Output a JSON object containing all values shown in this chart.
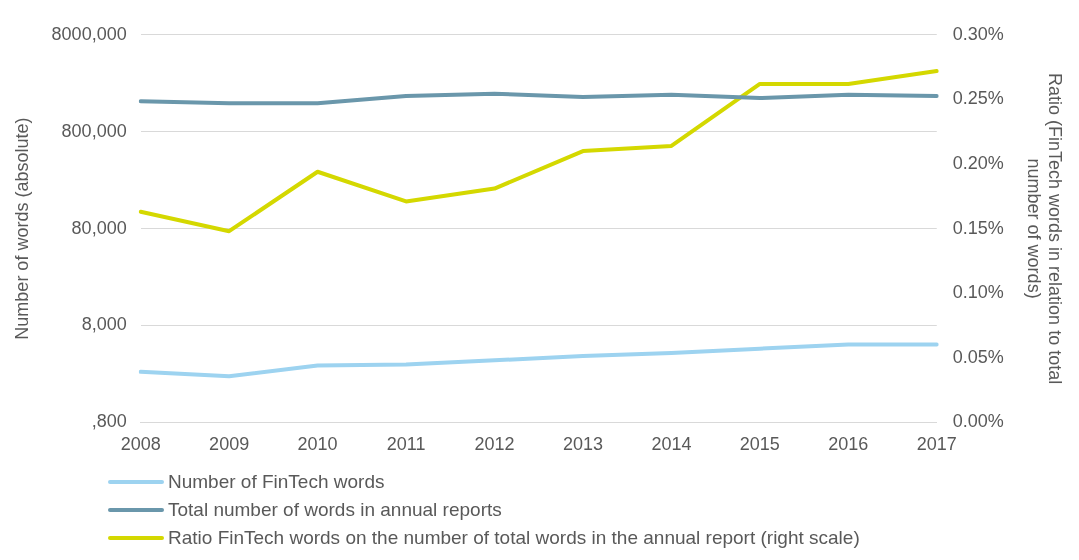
{
  "chart_data": {
    "type": "line",
    "categories": [
      "2008",
      "2009",
      "2010",
      "2011",
      "2012",
      "2013",
      "2014",
      "2015",
      "2016",
      "2017"
    ],
    "series": [
      {
        "name": "Number of FinTech words",
        "color": "#9dd3f0",
        "values": [
          2660,
          2400,
          3090,
          3170,
          3500,
          3870,
          4170,
          4610,
          5100,
          5100
        ]
      },
      {
        "name": "Total number of words in annual reports",
        "color": "#6a97ab",
        "values": [
          1650000,
          1570000,
          1570000,
          1870000,
          1970000,
          1830000,
          1920000,
          1780000,
          1920000,
          1870000
        ]
      },
      {
        "name": "Ratio FinTech words on the number of total words in the annual report (right scale)",
        "color": "#d4d800",
        "axis": "y2",
        "values": [
          0.163,
          0.148,
          0.194,
          0.171,
          0.181,
          0.21,
          0.214,
          0.262,
          0.262,
          0.272
        ]
      }
    ],
    "ylabel": "Number of words (absolute)",
    "y2label": "Ratio (FinTech words in relation to total number of words)",
    "log": "y",
    "ylim": [
      800,
      8000000
    ],
    "yticks": [
      {
        "value": 800,
        "label": ",800"
      },
      {
        "value": 8000,
        "label": "8,000"
      },
      {
        "value": 80000,
        "label": "80,000"
      },
      {
        "value": 800000,
        "label": "800,000"
      },
      {
        "value": 8000000,
        "label": "8000,000"
      }
    ],
    "y2lim": [
      0,
      0.3
    ],
    "y2ticks": [
      {
        "value": 0,
        "label": "0.00%"
      },
      {
        "value": 0.05,
        "label": "0.05%"
      },
      {
        "value": 0.1,
        "label": "0.10%"
      },
      {
        "value": 0.15,
        "label": "0.15%"
      },
      {
        "value": 0.2,
        "label": "0.20%"
      },
      {
        "value": 0.25,
        "label": "0.25%"
      },
      {
        "value": 0.3,
        "label": "0.30%"
      }
    ],
    "grid": "y",
    "legend": "bottom",
    "marker": "none",
    "line_style": "solid"
  }
}
